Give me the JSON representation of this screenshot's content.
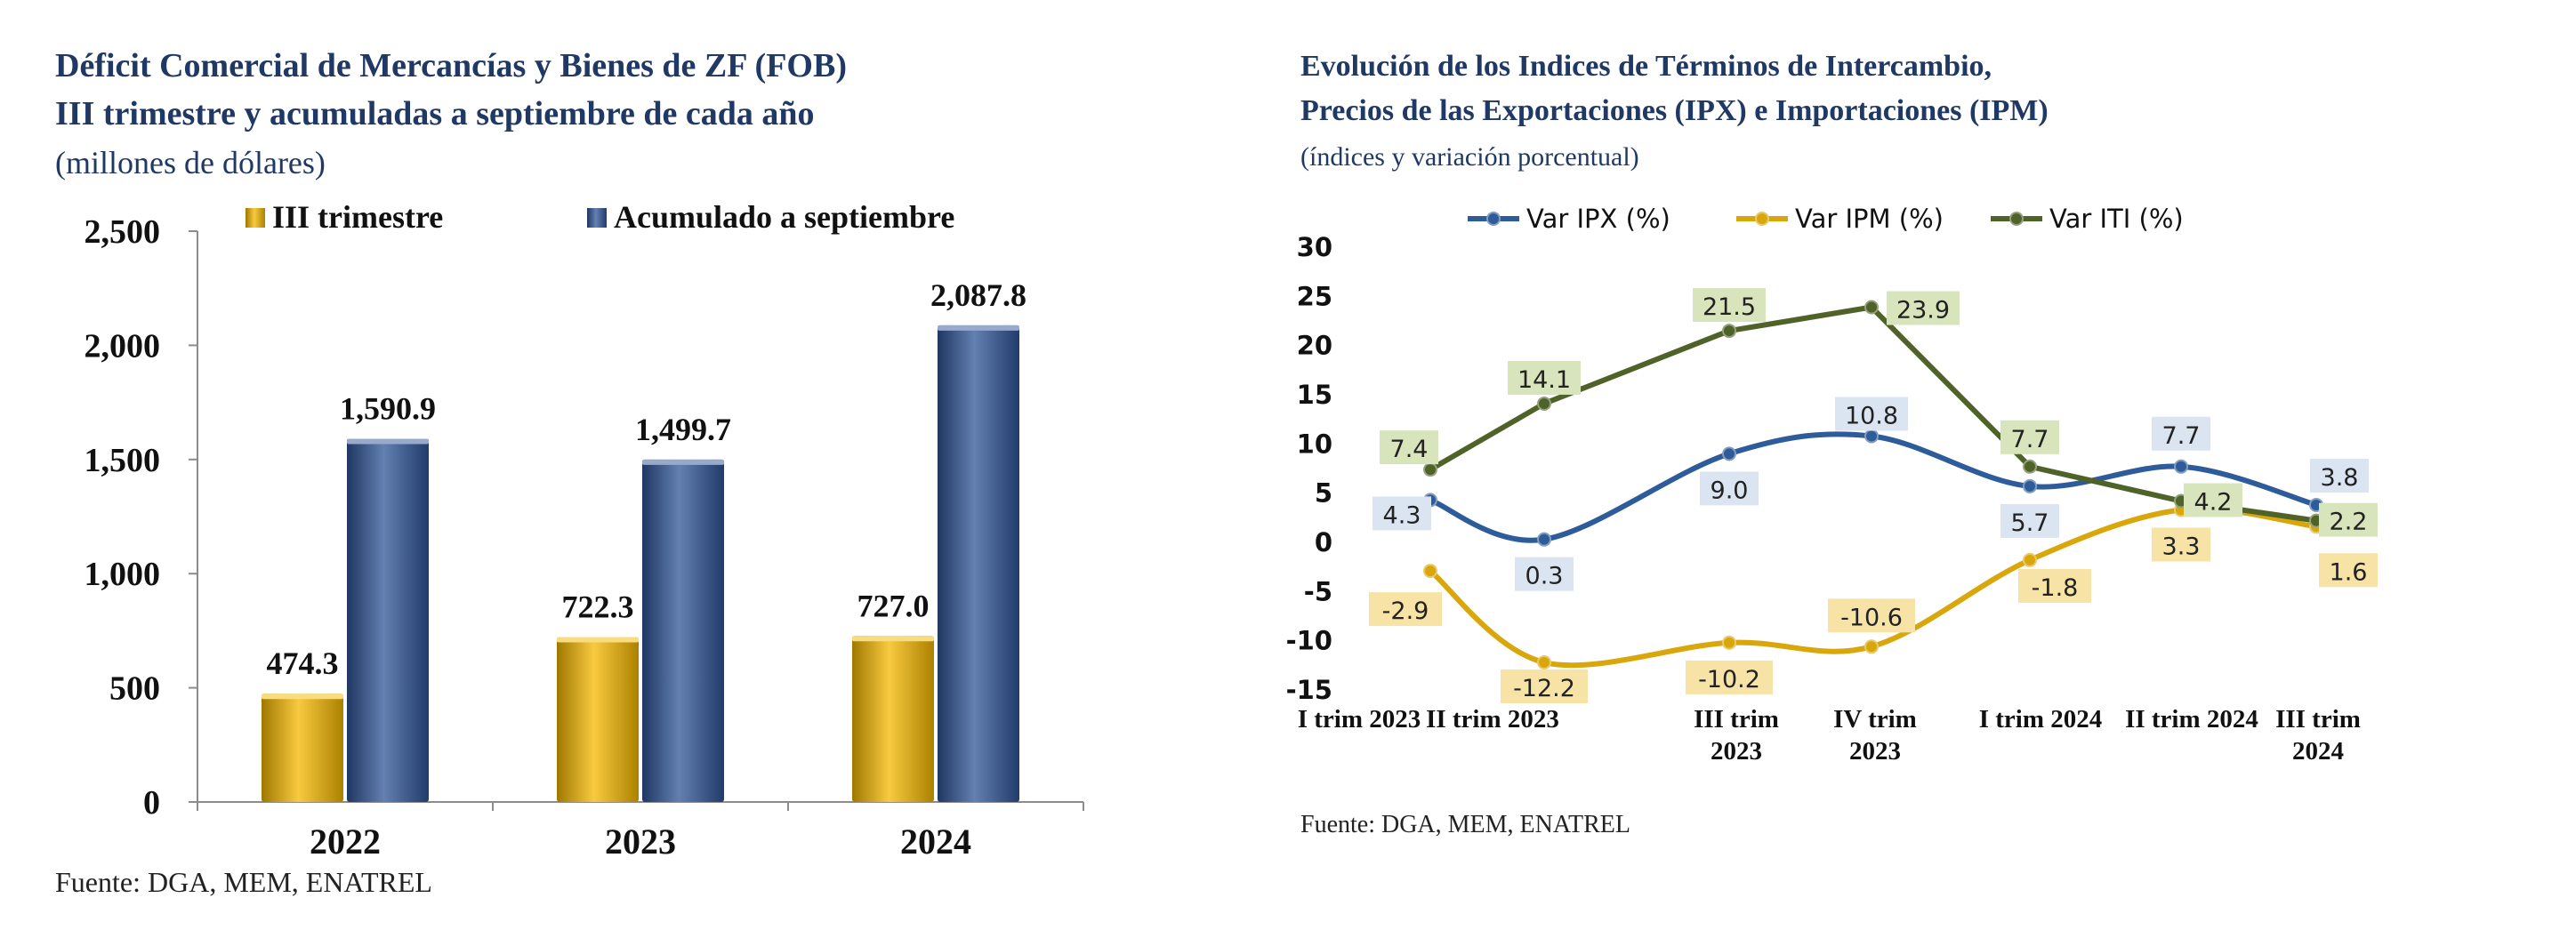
{
  "chart_data": [
    {
      "type": "bar",
      "title": "Déficit Comercial de Mercancías y Bienes de ZF (FOB)",
      "title_line2": "III trimestre y acumuladas a septiembre de cada año",
      "subtitle": "(millones de dólares)",
      "source": "Fuente: DGA, MEM, ENATREL",
      "categories": [
        "2022",
        "2023",
        "2024"
      ],
      "series": [
        {
          "name": "III trimestre",
          "values": [
            474.3,
            722.3,
            727.0
          ],
          "labels": [
            "474.3",
            "722.3",
            "727.0"
          ],
          "color": "#f5b800"
        },
        {
          "name": "Acumulado a septiembre",
          "values": [
            1590.9,
            1499.7,
            2087.8
          ],
          "labels": [
            "1,590.9",
            "1,499.7",
            "2,087.8"
          ],
          "color": "#2f5597"
        }
      ],
      "ylim": [
        0,
        2500
      ],
      "yticks": [
        "0",
        "500",
        "1,000",
        "1,500",
        "2,000",
        "2,500"
      ],
      "legend_position": "top",
      "grid": false
    },
    {
      "type": "line",
      "title": "Evolución de los Indices de Términos de Intercambio,",
      "title_line2": "Precios de las Exportaciones (IPX) e Importaciones (IPM)",
      "subtitle": "(índices y variación porcentual)",
      "source": "Fuente: DGA, MEM, ENATREL",
      "categories": [
        [
          "I trim 2023"
        ],
        [
          "II trim 2023"
        ],
        [
          "III trim",
          "2023"
        ],
        [
          "IV trim",
          "2023"
        ],
        [
          "I trim 2024"
        ],
        [
          "II trim 2024"
        ],
        [
          "III trim",
          "2024"
        ]
      ],
      "series": [
        {
          "name": "Var IPX (%)",
          "values": [
            4.3,
            0.3,
            9.0,
            10.8,
            5.7,
            7.7,
            3.8
          ],
          "labels": [
            "4.3",
            "0.3",
            "9.0",
            "10.8",
            "5.7",
            "7.7",
            "3.8"
          ],
          "color": "#2e5c9a",
          "label_bg": "#dbe5f1"
        },
        {
          "name": "Var IPM (%)",
          "values": [
            -2.9,
            -12.2,
            -10.2,
            -10.6,
            -1.8,
            3.3,
            1.6
          ],
          "labels": [
            "-2.9",
            "-12.2",
            "-10.2",
            "-10.6",
            "-1.8",
            "3.3",
            "1.6"
          ],
          "color": "#d9a70c",
          "label_bg": "#f7e3a6"
        },
        {
          "name": "Var ITI (%)",
          "values": [
            7.4,
            14.1,
            21.5,
            23.9,
            7.7,
            4.2,
            2.2
          ],
          "labels": [
            "7.4",
            "14.1",
            "21.5",
            "23.9",
            "7.7",
            "4.2",
            "2.2"
          ],
          "color": "#4f6228",
          "label_bg": "#d8e4bc"
        }
      ],
      "ylim": [
        -15,
        30
      ],
      "yticks": [
        "30",
        "25",
        "20",
        "15",
        "10",
        "5",
        "0",
        "-5",
        "-10",
        "-15"
      ],
      "legend_position": "top",
      "grid": false
    }
  ]
}
